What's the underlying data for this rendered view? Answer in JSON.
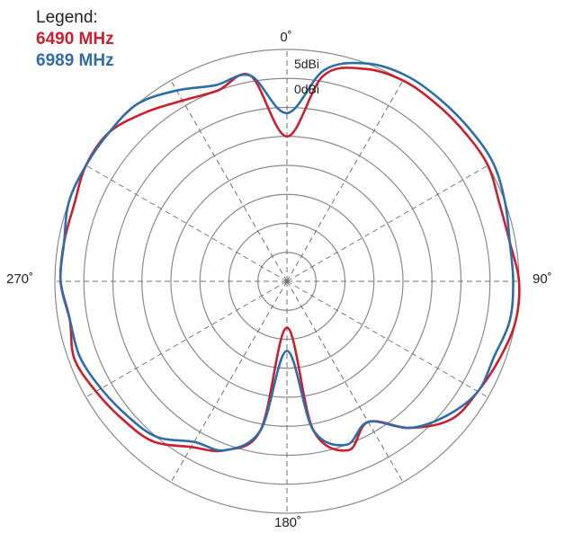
{
  "legend": {
    "title": "Legend:",
    "entries": [
      "6490 MHz",
      "6989 MHz"
    ]
  },
  "chart_data": {
    "type": "line",
    "subtype": "polar",
    "title": "",
    "angle_ticks": [
      "0˚",
      "90˚",
      "180˚",
      "270˚"
    ],
    "ring_labels": [
      "5dBi",
      "0dBi"
    ],
    "ring_levels_dBi": [
      5,
      0,
      -5,
      -10,
      -15,
      -20,
      -25,
      -30
    ],
    "grid": true,
    "legend_position": "top-left",
    "angles_deg": [
      0,
      10,
      20,
      30,
      40,
      50,
      60,
      70,
      80,
      90,
      100,
      110,
      120,
      130,
      140,
      150,
      160,
      170,
      180,
      190,
      200,
      210,
      220,
      230,
      240,
      250,
      260,
      270,
      280,
      290,
      300,
      310,
      320,
      330,
      340,
      350
    ],
    "series": [
      {
        "name": "6490 MHz",
        "color": "#c8202f",
        "values_dBi": [
          -10,
          1,
          4,
          5,
          5,
          5,
          5,
          4,
          4,
          5,
          5,
          4,
          3,
          2,
          -2,
          -7,
          -4,
          -9,
          -27,
          -9,
          -4,
          -2,
          1,
          2,
          3,
          4,
          3,
          4,
          4,
          4,
          5,
          5,
          3,
          1,
          0,
          1
        ]
      },
      {
        "name": "6989 MHz",
        "color": "#2f6ca8",
        "values_dBi": [
          -6,
          2,
          5,
          6,
          6,
          6,
          6,
          5,
          4,
          4,
          4,
          3,
          3,
          1,
          -2,
          -7,
          -5,
          -9,
          -23,
          -9,
          -4,
          -3,
          0,
          1,
          2,
          3,
          3,
          4,
          4,
          5,
          5,
          5,
          5,
          3,
          1,
          1
        ]
      }
    ]
  }
}
